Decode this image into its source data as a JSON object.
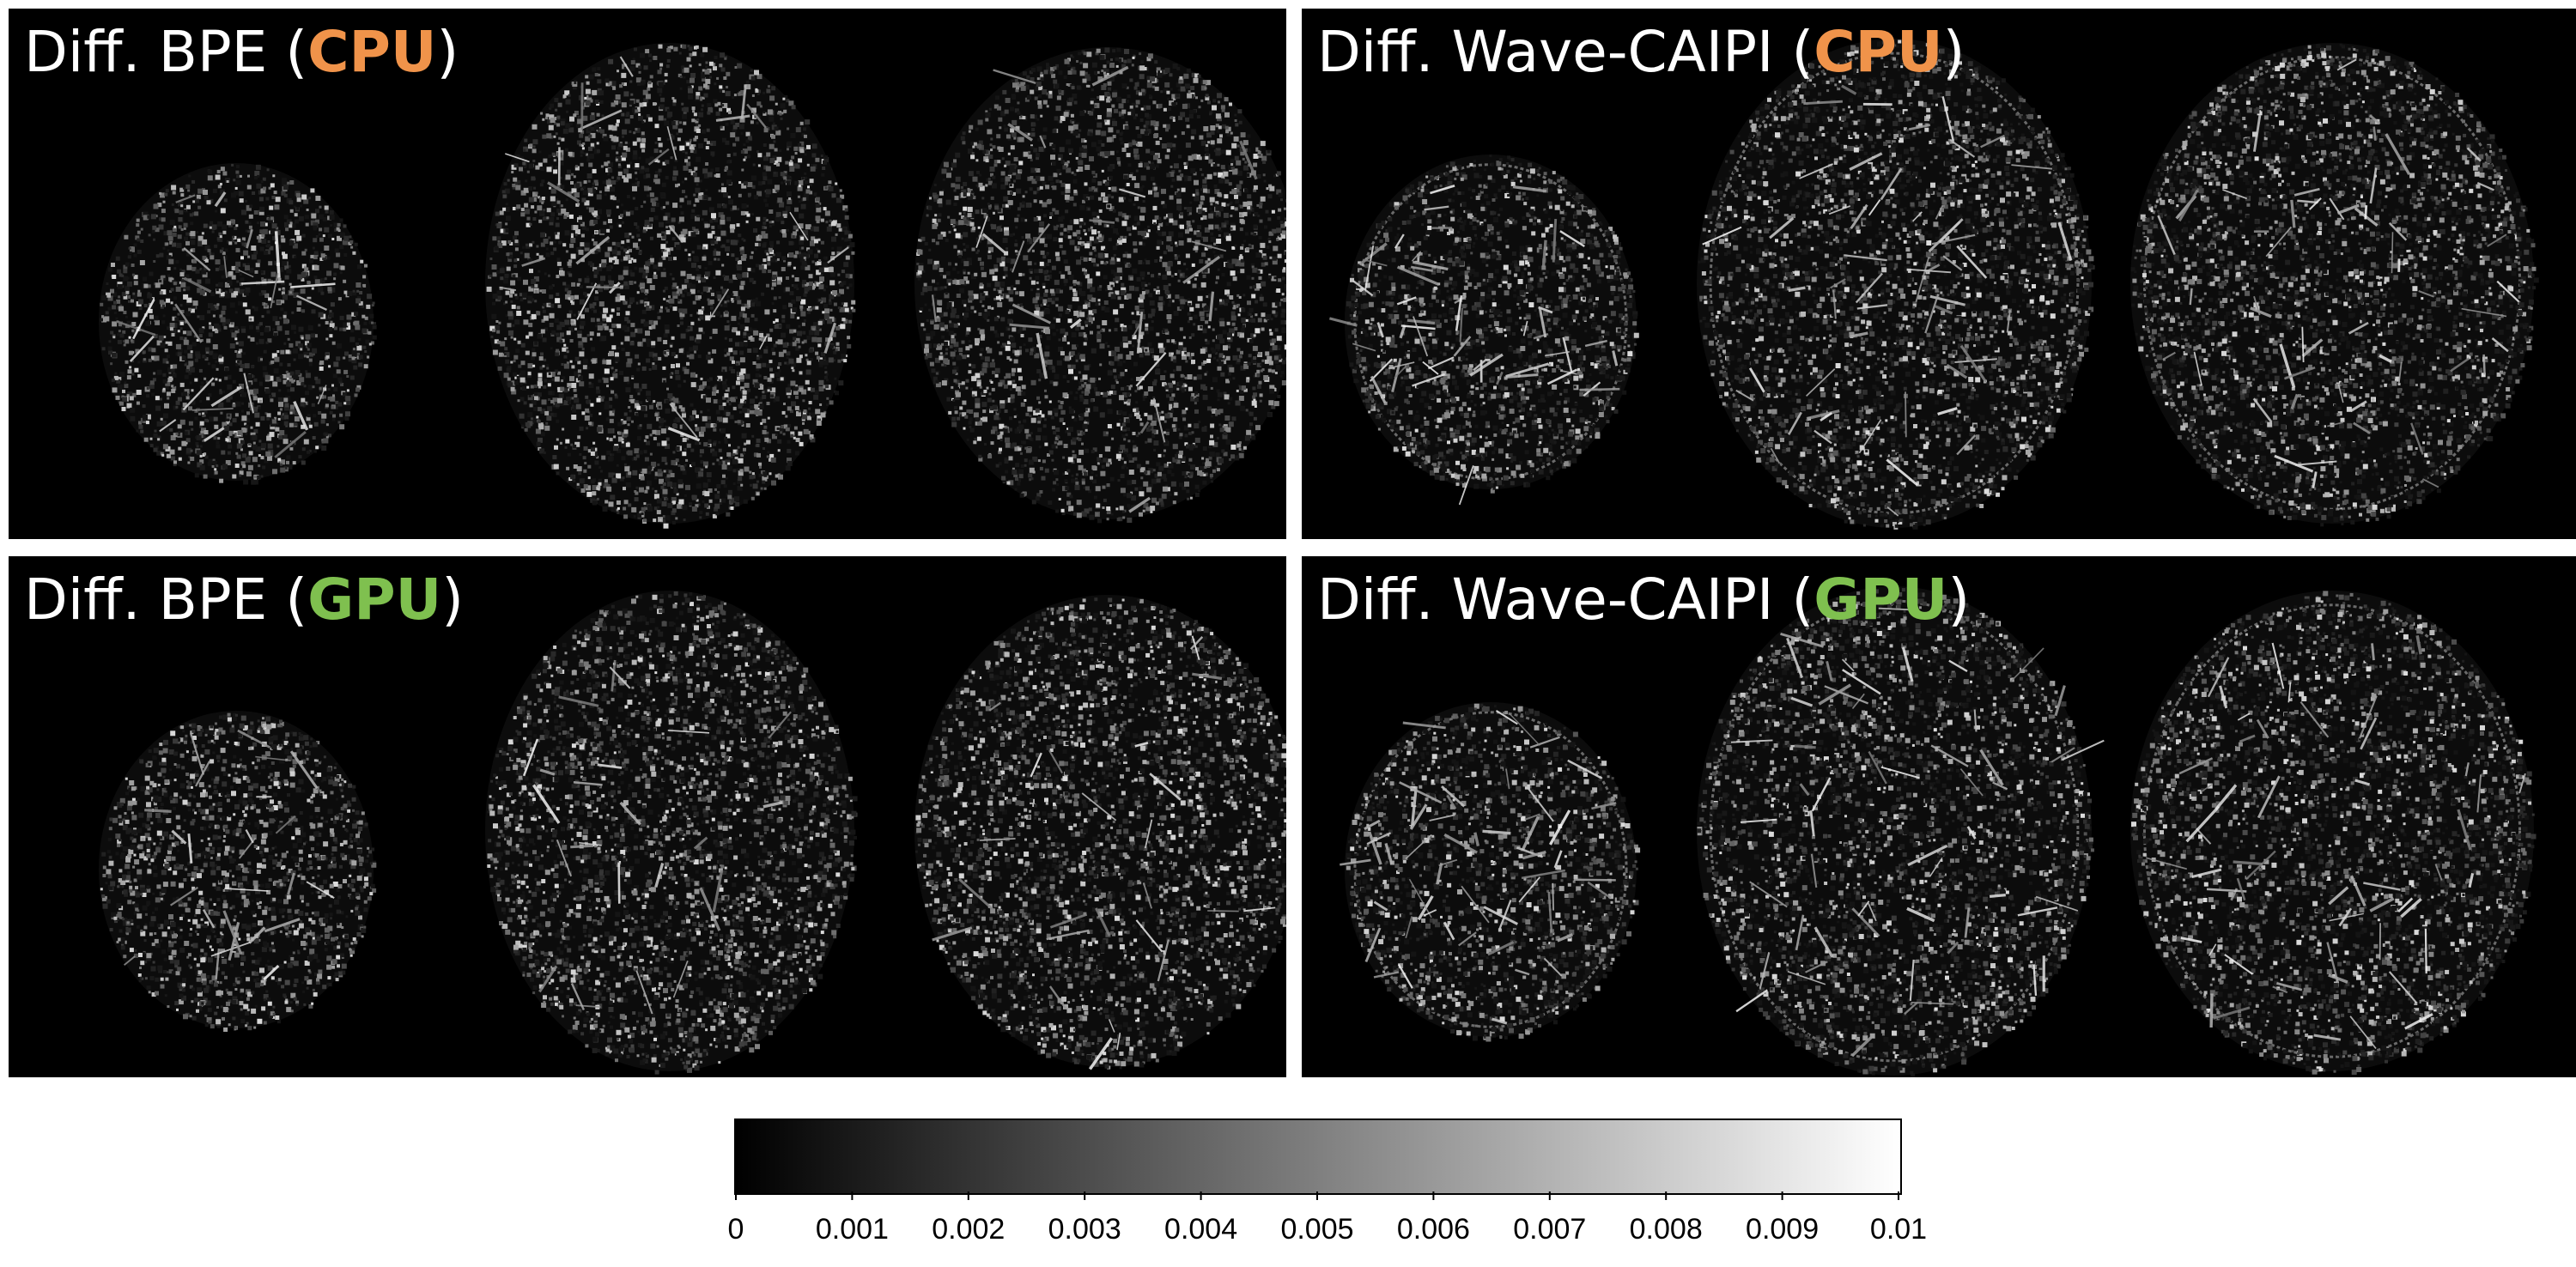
{
  "panels": [
    {
      "id": "bpe_cpu",
      "prefix": "Diff. BPE (",
      "highlight": "CPU",
      "suffix": ")",
      "highlight_color": "#f0934a",
      "style": "bpe"
    },
    {
      "id": "wave_cpu",
      "prefix": "Diff. Wave-CAIPI (",
      "highlight": "CPU",
      "suffix": ")",
      "highlight_color": "#f0934a",
      "style": "wave"
    },
    {
      "id": "bpe_gpu",
      "prefix": "Diff. BPE (",
      "highlight": "GPU",
      "suffix": ")",
      "highlight_color": "#7fc04f",
      "style": "bpe"
    },
    {
      "id": "wave_gpu",
      "prefix": "Diff. Wave-CAIPI (",
      "highlight": "GPU",
      "suffix": ")",
      "highlight_color": "#7fc04f",
      "style": "wave"
    }
  ],
  "colorbar": {
    "min": 0,
    "max": 0.01,
    "gradient_start": "#000000",
    "gradient_end": "#ffffff",
    "ticks": [
      "0",
      "0.001",
      "0.002",
      "0.003",
      "0.004",
      "0.005",
      "0.006",
      "0.007",
      "0.008",
      "0.009",
      "0.01"
    ]
  }
}
